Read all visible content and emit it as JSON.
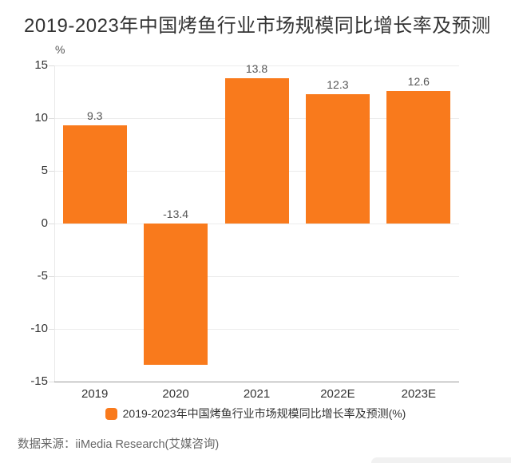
{
  "page": {
    "title": "2019-2023年中国烤鱼行业市场规模同比增长率及预测",
    "source": "数据来源：iiMedia Research(艾媒咨询)"
  },
  "chart_data": {
    "type": "bar",
    "title": "2019-2023年中国烤鱼行业市场规模同比增长率及预测",
    "categories": [
      "2019",
      "2020",
      "2021",
      "2022E",
      "2023E"
    ],
    "values": [
      9.3,
      -13.4,
      13.8,
      12.3,
      12.6
    ],
    "value_labels": [
      "9.3",
      "-13.4",
      "13.8",
      "12.3",
      "12.6"
    ],
    "unit": "%",
    "xlabel": "",
    "ylabel": "%",
    "ylim": [
      -15,
      15
    ],
    "yticks": [
      15,
      10,
      5,
      0,
      -5,
      -10,
      -15
    ],
    "grid": true,
    "legend": [
      "2019-2023年中国烤鱼行业市场规模同比增长率及预测(%)"
    ],
    "legend_position": "bottom",
    "bar_color": "#f97a1c",
    "colors": {
      "title_text": "#333333",
      "axis_text": "#333333",
      "value_text": "#555555",
      "source_text": "#666666",
      "gridline": "#ececec",
      "axis_line": "#9a9a9a"
    }
  }
}
